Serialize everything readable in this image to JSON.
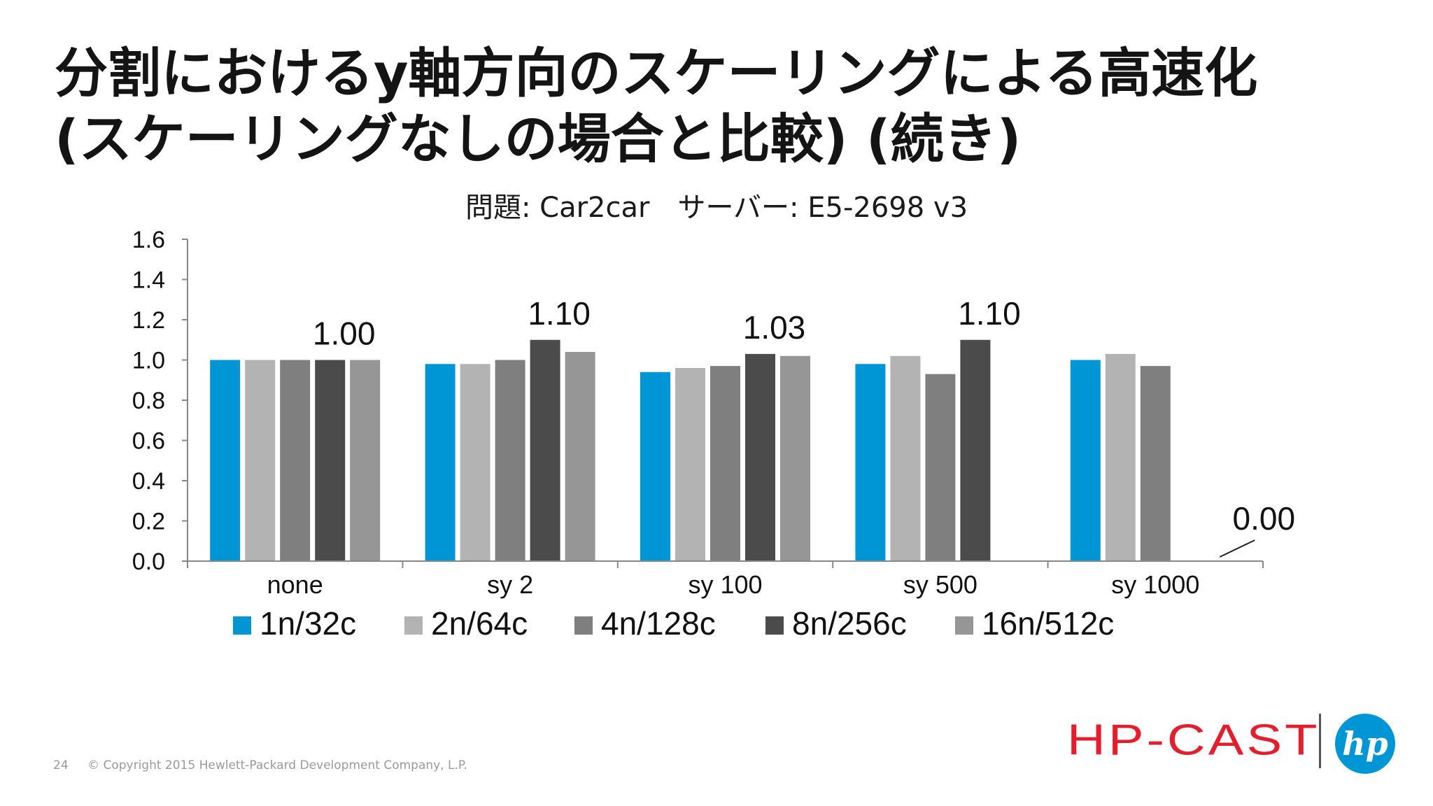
{
  "slide": {
    "title_line1": "分割におけるy軸方向のスケーリングによる高速化",
    "title_line2": "(スケーリングなしの場合と比較) (続き)",
    "subtitle": "問題: Car2car　サーバー: E5-2698 v3",
    "page_number": "24",
    "copyright": "© Copyright 2015 Hewlett-Packard Development Company, L.P.",
    "brand": "HP-CAST",
    "logo_text": "hp"
  },
  "chart_data": {
    "type": "bar",
    "categories": [
      "none",
      "sy 2",
      "sy 100",
      "sy 500",
      "sy 1000"
    ],
    "series": [
      {
        "name": "1n/32c",
        "color": "#0096d6",
        "values": [
          1.0,
          0.98,
          0.94,
          0.98,
          1.0
        ]
      },
      {
        "name": "2n/64c",
        "color": "#b3b3b3",
        "values": [
          1.0,
          0.98,
          0.96,
          1.02,
          1.03
        ]
      },
      {
        "name": "4n/128c",
        "color": "#7f7f7f",
        "values": [
          1.0,
          1.0,
          0.97,
          0.93,
          0.97
        ]
      },
      {
        "name": "8n/256c",
        "color": "#4b4b4b",
        "values": [
          1.0,
          1.1,
          1.03,
          1.1,
          0.0
        ]
      },
      {
        "name": "16n/512c",
        "color": "#969696",
        "values": [
          1.0,
          1.04,
          1.02,
          null,
          null
        ]
      }
    ],
    "data_labels": [
      {
        "series": "8n/256c",
        "category": "none",
        "text": "1.00"
      },
      {
        "series": "8n/256c",
        "category": "sy 2",
        "text": "1.10"
      },
      {
        "series": "8n/256c",
        "category": "sy 100",
        "text": "1.03"
      },
      {
        "series": "8n/256c",
        "category": "sy 500",
        "text": "1.10"
      },
      {
        "series": "8n/256c",
        "category": "sy 1000",
        "text": "0.00"
      }
    ],
    "y_ticks": [
      "0.0",
      "0.2",
      "0.4",
      "0.6",
      "0.8",
      "1.0",
      "1.2",
      "1.4",
      "1.6"
    ],
    "ylim": [
      0,
      1.6
    ],
    "grid": false,
    "legend_position": "bottom"
  }
}
